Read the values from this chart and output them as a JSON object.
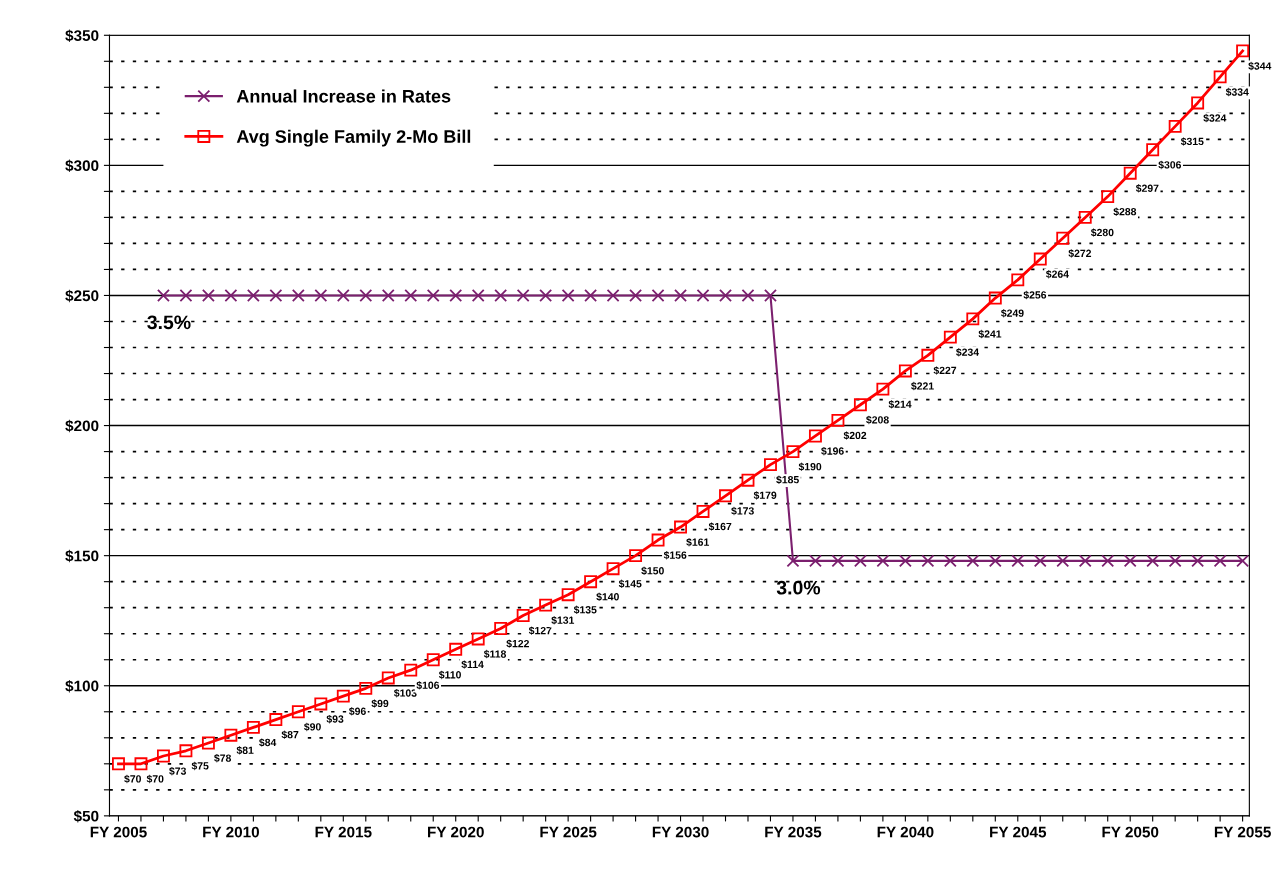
{
  "chart_data": {
    "type": "line",
    "categories": [
      "FY 2005",
      null,
      null,
      null,
      null,
      "FY 2010",
      null,
      null,
      null,
      null,
      "FY 2015",
      null,
      null,
      null,
      null,
      "FY 2020",
      null,
      null,
      null,
      null,
      "FY 2025",
      null,
      null,
      null,
      null,
      "FY 2030",
      null,
      null,
      null,
      null,
      "FY 2035",
      null,
      null,
      null,
      null,
      "FY 2040",
      null,
      null,
      null,
      null,
      "FY 2045",
      null,
      null,
      null,
      null,
      "FY 2050",
      null,
      null,
      null,
      null,
      "FY 2055"
    ],
    "series": [
      {
        "name": "Annual Increase in Rates",
        "color": "#7b1f6e",
        "marker": "cross",
        "values": [
          null,
          null,
          250,
          250,
          250,
          250,
          250,
          250,
          250,
          250,
          250,
          250,
          250,
          250,
          250,
          250,
          250,
          250,
          250,
          250,
          250,
          250,
          250,
          250,
          250,
          250,
          250,
          250,
          250,
          250,
          148,
          148,
          148,
          148,
          148,
          148,
          148,
          148,
          148,
          148,
          148,
          148,
          148,
          148,
          148,
          148,
          148,
          148,
          148,
          148,
          148
        ]
      },
      {
        "name": "Avg Single Family 2-Mo Bill",
        "color": "#ff0000",
        "marker": "square",
        "values": [
          70,
          70,
          73,
          75,
          78,
          81,
          84,
          87,
          90,
          93,
          96,
          99,
          103,
          106,
          110,
          114,
          118,
          122,
          127,
          131,
          135,
          140,
          145,
          150,
          156,
          161,
          167,
          173,
          179,
          185,
          190,
          196,
          202,
          208,
          214,
          221,
          227,
          234,
          241,
          249,
          256,
          264,
          272,
          280,
          288,
          297,
          306,
          315,
          324,
          334,
          344
        ],
        "value_labels": [
          "$70",
          "$70",
          "$73",
          "$75",
          "$78",
          "$81",
          "$84",
          "$87",
          "$90",
          "$93",
          "$96",
          "$99",
          "$103",
          "$106",
          "$110",
          "$114",
          "$118",
          "$122",
          "$127",
          "$131",
          "$135",
          "$140",
          "$145",
          "$150",
          "$156",
          "$161",
          "$167",
          "$173",
          "$179",
          "$185",
          "$190",
          "$196",
          "$202",
          "$208",
          "$214",
          "$221",
          "$227",
          "$234",
          "$241",
          "$249",
          "$256",
          "$264",
          "$272",
          "$280",
          "$288",
          "$297",
          "$306",
          "$315",
          "$324",
          "$334",
          "$344"
        ]
      }
    ],
    "annotations": [
      {
        "text": "3.5%",
        "y": 250
      },
      {
        "text": "3.0%",
        "y": 148
      }
    ],
    "ylim": [
      50,
      350
    ],
    "yticks": [
      {
        "value": 50,
        "label": "$50"
      },
      {
        "value": 60,
        "label": null
      },
      {
        "value": 70,
        "label": null
      },
      {
        "value": 80,
        "label": null
      },
      {
        "value": 90,
        "label": null
      },
      {
        "value": 100,
        "label": "$100"
      },
      {
        "value": 110,
        "label": null
      },
      {
        "value": 120,
        "label": null
      },
      {
        "value": 130,
        "label": null
      },
      {
        "value": 140,
        "label": null
      },
      {
        "value": 150,
        "label": "$150"
      },
      {
        "value": 160,
        "label": null
      },
      {
        "value": 170,
        "label": null
      },
      {
        "value": 180,
        "label": null
      },
      {
        "value": 190,
        "label": null
      },
      {
        "value": 200,
        "label": "$200"
      },
      {
        "value": 210,
        "label": null
      },
      {
        "value": 220,
        "label": null
      },
      {
        "value": 230,
        "label": null
      },
      {
        "value": 240,
        "label": null
      },
      {
        "value": 250,
        "label": "$250"
      },
      {
        "value": 260,
        "label": null
      },
      {
        "value": 270,
        "label": null
      },
      {
        "value": 280,
        "label": null
      },
      {
        "value": 290,
        "label": null
      },
      {
        "value": 300,
        "label": "$300"
      },
      {
        "value": 310,
        "label": null
      },
      {
        "value": 320,
        "label": null
      },
      {
        "value": 330,
        "label": null
      },
      {
        "value": 340,
        "label": null
      },
      {
        "value": 350,
        "label": "$350"
      }
    ],
    "grid": "y",
    "legend": "top left",
    "line_style": "solid"
  }
}
